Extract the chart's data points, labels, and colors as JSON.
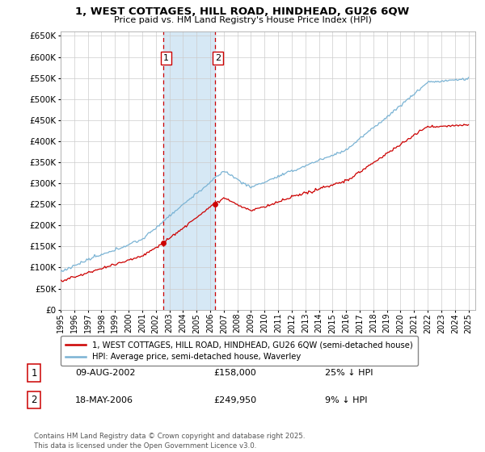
{
  "title": "1, WEST COTTAGES, HILL ROAD, HINDHEAD, GU26 6QW",
  "subtitle": "Price paid vs. HM Land Registry's House Price Index (HPI)",
  "sale1_date": "09-AUG-2002",
  "sale1_price": 158000,
  "sale1_hpi_diff": "25% ↓ HPI",
  "sale1_label": "1",
  "sale2_date": "18-MAY-2006",
  "sale2_price": 249950,
  "sale2_hpi_diff": "9% ↓ HPI",
  "sale2_label": "2",
  "legend_house": "1, WEST COTTAGES, HILL ROAD, HINDHEAD, GU26 6QW (semi-detached house)",
  "legend_hpi": "HPI: Average price, semi-detached house, Waverley",
  "footer": "Contains HM Land Registry data © Crown copyright and database right 2025.\nThis data is licensed under the Open Government Licence v3.0.",
  "house_color": "#cc0000",
  "hpi_color": "#7ab3d4",
  "shade_color": "#d6e8f5",
  "vline_color": "#cc0000",
  "grid_color": "#cccccc",
  "ylim": [
    0,
    660000
  ],
  "yticks": [
    0,
    50000,
    100000,
    150000,
    200000,
    250000,
    300000,
    350000,
    400000,
    450000,
    500000,
    550000,
    600000,
    650000
  ],
  "x_start_year": 1995,
  "x_end_year": 2025,
  "sale1_year": 2002.58,
  "sale2_year": 2006.37
}
